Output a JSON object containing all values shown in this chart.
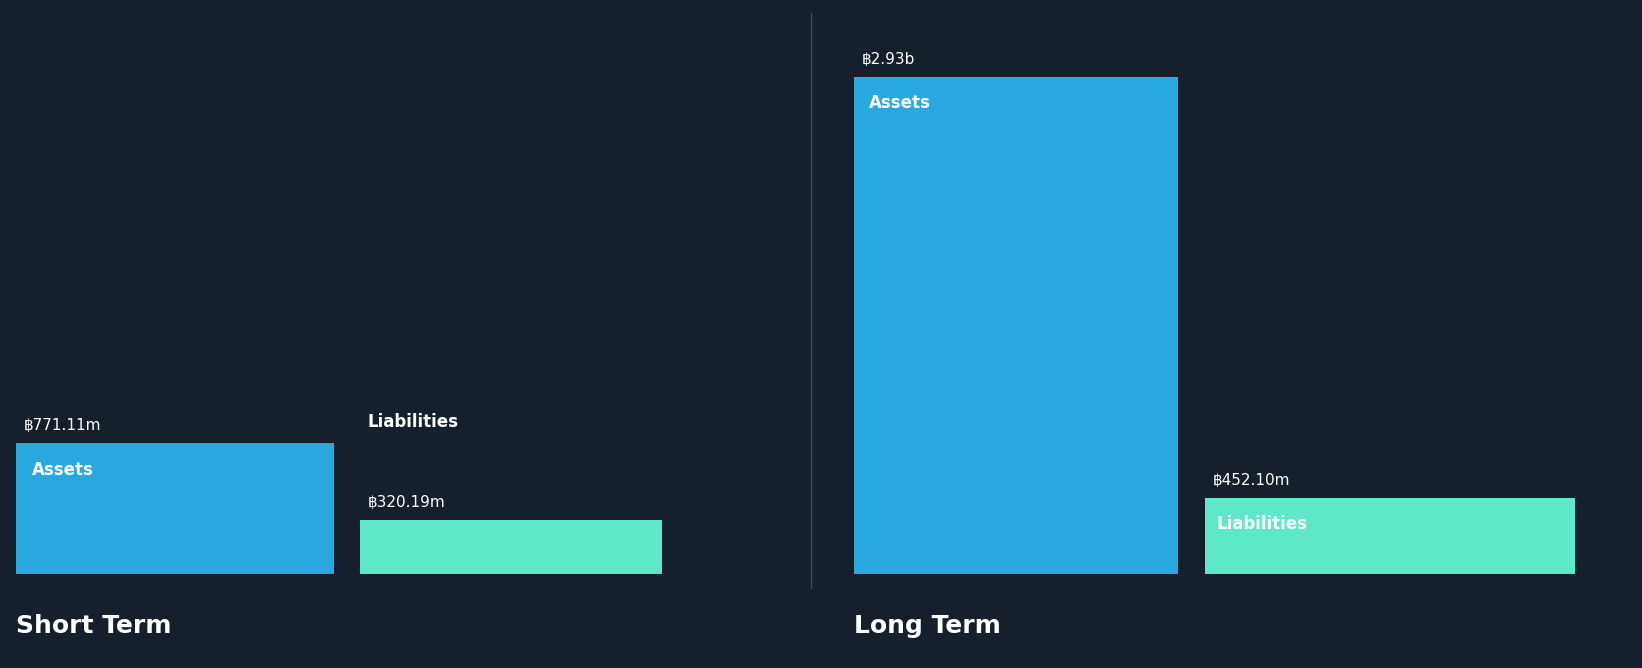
{
  "background_color": "#16202c",
  "text_color": "#ffffff",
  "asset_color": "#29a8e0",
  "liability_color": "#5de8c8",
  "short_term": {
    "assets_value": 771.11,
    "assets_label": "฿771.11m",
    "liabilities_value": 320.19,
    "liabilities_label": "฿320.19m",
    "assets_bar_label": "Assets",
    "liabilities_bar_label": "Liabilities",
    "section_label": "Short Term"
  },
  "long_term": {
    "assets_value": 2930.0,
    "assets_label": "฿2.93b",
    "liabilities_value": 452.1,
    "liabilities_label": "฿452.10m",
    "assets_bar_label": "Assets",
    "liabilities_bar_label": "Liabilities",
    "section_label": "Long Term"
  },
  "max_value": 2930.0,
  "label_fontsize": 11,
  "section_label_fontsize": 18,
  "bar_inner_fontsize": 12
}
